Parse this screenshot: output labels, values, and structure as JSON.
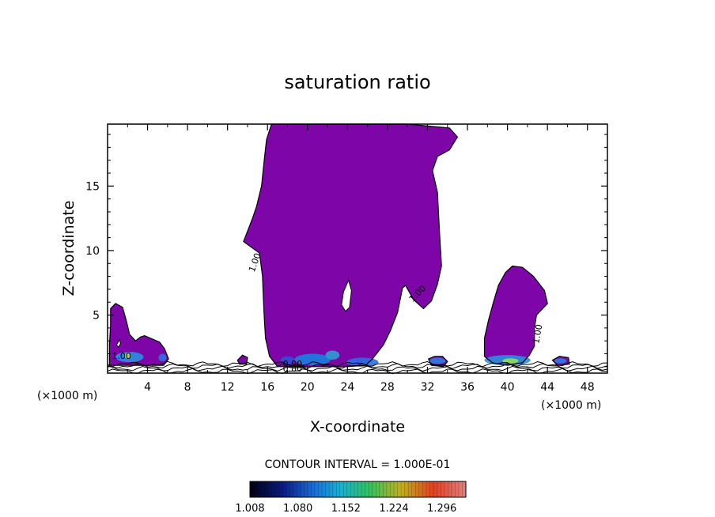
{
  "chart_data": {
    "type": "contour",
    "title": "saturation ratio",
    "xlabel": "X-coordinate",
    "ylabel": "Z-coordinate",
    "x_unit_left": "(×1000 m)",
    "x_unit_right": "(×1000 m)",
    "xlim": [
      0,
      50
    ],
    "ylim": [
      0.5,
      19.8
    ],
    "x_ticks": [
      4,
      8,
      12,
      16,
      20,
      24,
      28,
      32,
      36,
      40,
      44,
      48
    ],
    "y_ticks": [
      5,
      10,
      15
    ],
    "contour_interval_label": "CONTOUR INTERVAL = 1.000E-01",
    "colorbar_labels": [
      "1.008",
      "1.080",
      "1.152",
      "1.224",
      "1.296"
    ],
    "colorbar_range": [
      1.008,
      1.332
    ],
    "contour_labels": [
      "1.00",
      "1.00",
      "1.00",
      "1.00",
      "0.90",
      "0.80"
    ],
    "fill_color": "#7e05a8",
    "regions": [
      {
        "name": "main-cloud",
        "points": [
          [
            16.4,
            19.8
          ],
          [
            30,
            19.8
          ],
          [
            34.2,
            19.5
          ],
          [
            35,
            18.8
          ],
          [
            34.2,
            17.8
          ],
          [
            33,
            17.3
          ],
          [
            32.5,
            16.2
          ],
          [
            33,
            14.5
          ],
          [
            33.2,
            11.5
          ],
          [
            33.4,
            8.8
          ],
          [
            33,
            7.4
          ],
          [
            32.4,
            6.1
          ],
          [
            31.6,
            5.5
          ],
          [
            30.6,
            6.2
          ],
          [
            29.8,
            7.3
          ],
          [
            29.5,
            7.1
          ],
          [
            29,
            5.2
          ],
          [
            28.3,
            3.8
          ],
          [
            27.6,
            2.7
          ],
          [
            26.5,
            1.6
          ],
          [
            25.8,
            1.1
          ],
          [
            24,
            1.0
          ],
          [
            20,
            1.0
          ],
          [
            17,
            1.0
          ],
          [
            16.2,
            1.8
          ],
          [
            15.8,
            3.2
          ],
          [
            15.7,
            4.5
          ],
          [
            15.6,
            6.0
          ],
          [
            15.5,
            8.0
          ],
          [
            15.2,
            9.8
          ],
          [
            13.6,
            10.7
          ],
          [
            13.9,
            11.3
          ],
          [
            14.5,
            12.5
          ],
          [
            14.9,
            13.4
          ],
          [
            15.4,
            15.0
          ],
          [
            15.7,
            17.2
          ],
          [
            15.9,
            18.6
          ]
        ]
      },
      {
        "name": "right-cloud",
        "points": [
          [
            39.8,
            8.3
          ],
          [
            40.5,
            8.8
          ],
          [
            41.5,
            8.7
          ],
          [
            42.6,
            8.0
          ],
          [
            43.7,
            6.9
          ],
          [
            44.0,
            5.9
          ],
          [
            43.4,
            5.4
          ],
          [
            42.9,
            5.0
          ],
          [
            42.7,
            4.0
          ],
          [
            42.7,
            2.6
          ],
          [
            42.2,
            1.9
          ],
          [
            41.5,
            1.3
          ],
          [
            40,
            1.1
          ],
          [
            38.5,
            1.3
          ],
          [
            37.7,
            1.8
          ],
          [
            37.7,
            3.2
          ],
          [
            38.1,
            4.6
          ],
          [
            38.6,
            6.0
          ],
          [
            39.1,
            7.3
          ]
        ]
      },
      {
        "name": "left-cloud",
        "points": [
          [
            0.3,
            5.5
          ],
          [
            0.8,
            5.9
          ],
          [
            1.5,
            5.6
          ],
          [
            1.9,
            4.5
          ],
          [
            2.2,
            3.5
          ],
          [
            2.8,
            3.0
          ],
          [
            3.3,
            3.3
          ],
          [
            3.7,
            3.4
          ],
          [
            4.3,
            3.2
          ],
          [
            5.2,
            2.9
          ],
          [
            5.7,
            2.4
          ],
          [
            6.1,
            1.6
          ],
          [
            5.6,
            1.1
          ],
          [
            3,
            1.1
          ],
          [
            0.2,
            1.1
          ],
          [
            0.2,
            2.8
          ],
          [
            0.3,
            4.2
          ]
        ]
      },
      {
        "name": "patch-14",
        "points": [
          [
            13,
            1.5
          ],
          [
            13.5,
            1.9
          ],
          [
            14,
            1.7
          ],
          [
            13.9,
            1.2
          ],
          [
            13.2,
            1.2
          ]
        ]
      },
      {
        "name": "patch-33",
        "points": [
          [
            32.1,
            1.6
          ],
          [
            32.7,
            1.8
          ],
          [
            33.5,
            1.8
          ],
          [
            34,
            1.4
          ],
          [
            33.6,
            1.0
          ],
          [
            32.4,
            1.1
          ]
        ]
      },
      {
        "name": "patch-45",
        "points": [
          [
            44.5,
            1.5
          ],
          [
            45.2,
            1.8
          ],
          [
            46.1,
            1.7
          ],
          [
            46.2,
            1.2
          ],
          [
            45,
            1.1
          ]
        ]
      }
    ],
    "holes": [
      {
        "name": "hole-1",
        "points": [
          [
            23.6,
            6.8
          ],
          [
            24.1,
            7.7
          ],
          [
            24.4,
            6.9
          ],
          [
            24.2,
            5.6
          ],
          [
            23.8,
            5.3
          ],
          [
            23.4,
            5.8
          ]
        ]
      },
      {
        "name": "hole-2",
        "points": [
          [
            0.9,
            2.7
          ],
          [
            1.2,
            3.1
          ],
          [
            1.3,
            2.8
          ],
          [
            1.1,
            2.5
          ]
        ]
      }
    ],
    "hotspots": [
      {
        "x": 20.5,
        "y": 1.55,
        "rx": 1.8,
        "ry": 0.45,
        "color": "#1a7fe0"
      },
      {
        "x": 22.5,
        "y": 1.9,
        "rx": 0.7,
        "ry": 0.35,
        "color": "#2aa0d0"
      },
      {
        "x": 25.5,
        "y": 1.35,
        "rx": 1.6,
        "ry": 0.35,
        "color": "#2a6fe0"
      },
      {
        "x": 18.0,
        "y": 1.5,
        "rx": 0.7,
        "ry": 0.3,
        "color": "#3050d8"
      },
      {
        "x": 40.0,
        "y": 1.5,
        "rx": 2.3,
        "ry": 0.4,
        "color": "#2a8fe0"
      },
      {
        "x": 40.3,
        "y": 1.45,
        "rx": 0.8,
        "ry": 0.2,
        "color": "#8be05a"
      },
      {
        "x": 2.2,
        "y": 1.75,
        "rx": 1.4,
        "ry": 0.4,
        "color": "#2a90e0"
      },
      {
        "x": 2.0,
        "y": 1.85,
        "rx": 0.35,
        "ry": 0.2,
        "color": "#b0e050"
      },
      {
        "x": 5.5,
        "y": 1.7,
        "rx": 0.4,
        "ry": 0.3,
        "color": "#3070e0"
      },
      {
        "x": 33.0,
        "y": 1.45,
        "rx": 0.8,
        "ry": 0.25,
        "color": "#2a7fe0"
      },
      {
        "x": 45.3,
        "y": 1.45,
        "rx": 0.6,
        "ry": 0.2,
        "color": "#2a7fe0"
      }
    ],
    "near_ground_lines": [
      0.65,
      0.85,
      1.05,
      1.2
    ],
    "grid": false
  }
}
